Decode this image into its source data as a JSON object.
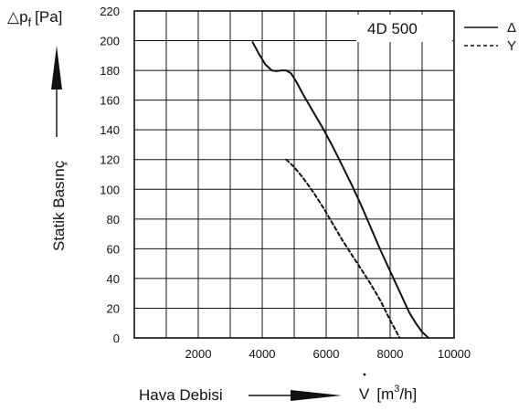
{
  "chart_data": {
    "type": "line",
    "title": "4D 500",
    "ylabel": "Statik Basınç",
    "y_symbol": "△p",
    "y_symbol_sub": "f",
    "y_unit": "[Pa]",
    "xlabel": "Hava Debisi",
    "x_symbol": "V",
    "x_unit_open": "[m",
    "x_unit_sup": "3",
    "x_unit_close": "/h]",
    "xlim": [
      0,
      10000
    ],
    "ylim": [
      0,
      220
    ],
    "xticks": [
      "2000",
      "4000",
      "6000",
      "8000",
      "10000"
    ],
    "yticks": [
      "0",
      "20",
      "40",
      "60",
      "80",
      "100",
      "120",
      "140",
      "160",
      "180",
      "200",
      "220"
    ],
    "grid": true,
    "legend_position": "outside-top-right",
    "series": [
      {
        "name": "Δ",
        "style": "solid",
        "x": [
          3700,
          3900,
          4100,
          4300,
          4450,
          4600,
          4750,
          4900,
          5050,
          5300,
          5600,
          5900,
          6200,
          6500,
          6800,
          7100,
          7400,
          7700,
          8000,
          8300,
          8600,
          8800,
          9000,
          9200
        ],
        "y": [
          199,
          191,
          184,
          180,
          179.5,
          180,
          180,
          178,
          173,
          163,
          152,
          141,
          129,
          116,
          103,
          89,
          74,
          59,
          45,
          31,
          17,
          10,
          4,
          0
        ]
      },
      {
        "name": "Y",
        "style": "dashed",
        "x": [
          4750,
          5000,
          5300,
          5600,
          5900,
          6200,
          6500,
          6800,
          7100,
          7400,
          7700,
          8000,
          8300
        ],
        "y": [
          120,
          115,
          107,
          98,
          88,
          77,
          66,
          56,
          46,
          36,
          25,
          12,
          0
        ]
      }
    ]
  }
}
